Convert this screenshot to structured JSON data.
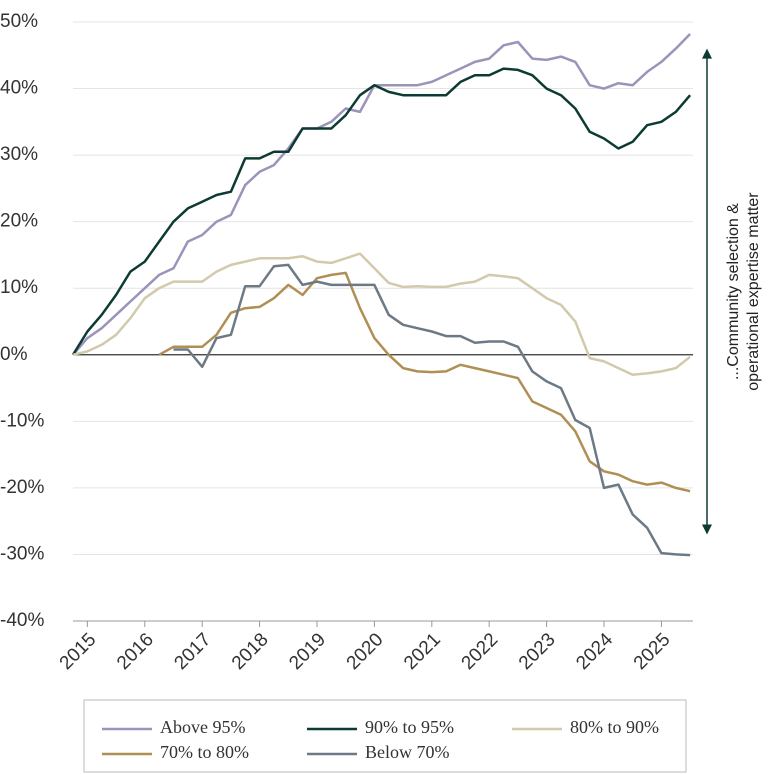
{
  "chart_data": {
    "type": "line",
    "x": [
      2014.75,
      2015,
      2015.25,
      2015.5,
      2015.75,
      2016,
      2016.25,
      2016.5,
      2016.75,
      2017,
      2017.25,
      2017.5,
      2017.75,
      2018,
      2018.25,
      2018.5,
      2018.75,
      2019,
      2019.25,
      2019.5,
      2019.75,
      2020,
      2020.25,
      2020.5,
      2020.75,
      2021,
      2021.25,
      2021.5,
      2021.75,
      2022,
      2022.25,
      2022.5,
      2022.75,
      2023,
      2023.25,
      2023.5,
      2023.75,
      2024,
      2024.25,
      2024.5,
      2024.75,
      2025,
      2025.25,
      2025.5
    ],
    "series": [
      {
        "name": "Above 95%",
        "color": "#9b94ba",
        "values": [
          0,
          2.5,
          4,
          6,
          8,
          10,
          12,
          13,
          17,
          18,
          20,
          21,
          25.5,
          27.5,
          28.5,
          31,
          34,
          34,
          35,
          37,
          36.5,
          40.5,
          40.5,
          40.5,
          40.5,
          41,
          42,
          43,
          44,
          44.5,
          46.5,
          47,
          44.5,
          44.3,
          44.8,
          44,
          40.5,
          40,
          40.8,
          40.5,
          42.5,
          44,
          46,
          48.2
        ]
      },
      {
        "name": "90% to 95%",
        "color": "#0d3b33",
        "values": [
          0,
          3.5,
          6,
          9,
          12.5,
          14,
          17,
          20,
          22,
          23,
          24,
          24.5,
          29.5,
          29.5,
          30.5,
          30.5,
          34,
          34,
          34,
          36,
          39,
          40.5,
          39.5,
          39,
          39,
          39,
          39,
          41,
          42,
          42,
          43,
          42.8,
          42,
          40,
          39,
          37,
          33.5,
          32.5,
          31,
          32,
          34.5,
          35,
          36.5,
          39
        ]
      },
      {
        "name": "80% to 90%",
        "color": "#d3c9ad",
        "values": [
          0,
          0.5,
          1.5,
          3,
          5.5,
          8.5,
          10,
          11,
          11,
          11,
          12.5,
          13.5,
          14,
          14.5,
          14.5,
          14.5,
          14.8,
          14,
          13.8,
          14.5,
          15.2,
          13,
          10.8,
          10.2,
          10.3,
          10.2,
          10.2,
          10.7,
          11,
          12,
          11.8,
          11.5,
          10,
          8.5,
          7.5,
          5,
          -0.5,
          -1,
          -2,
          -3,
          -2.8,
          -2.5,
          -2,
          -0.3
        ]
      },
      {
        "name": "70% to 80%",
        "color": "#b08f55",
        "values": [
          null,
          null,
          null,
          null,
          null,
          null,
          0,
          1.2,
          1.2,
          1.2,
          3,
          6.3,
          7,
          7.2,
          8.5,
          10.5,
          9,
          11.5,
          12,
          12.3,
          7,
          2.5,
          0,
          -2,
          -2.5,
          -2.6,
          -2.5,
          -1.5,
          -2,
          -2.5,
          -3,
          -3.5,
          -7,
          -8,
          -9,
          -11.5,
          -16,
          -17.5,
          -18,
          -19,
          -19.5,
          -19.2,
          -20,
          -20.5
        ]
      },
      {
        "name": "Below 70%",
        "color": "#6d7a86",
        "values": [
          null,
          null,
          null,
          null,
          null,
          null,
          null,
          0.8,
          0.8,
          -1.8,
          2.5,
          3,
          10.3,
          10.3,
          13.3,
          13.5,
          10.5,
          11,
          10.5,
          10.5,
          10.5,
          10.5,
          6,
          4.5,
          4,
          3.5,
          2.8,
          2.8,
          1.8,
          2,
          2,
          1.2,
          -2.5,
          -4,
          -5,
          -9.8,
          -11,
          -20,
          -19.5,
          -24,
          -26,
          -29.8,
          -30,
          -30.1
        ]
      }
    ],
    "xlim": [
      2014.75,
      2025.55
    ],
    "xticks": [
      2015,
      2016,
      2017,
      2018,
      2019,
      2020,
      2021,
      2022,
      2023,
      2024,
      2025
    ],
    "ylim": [
      -40,
      50
    ],
    "yticks": [
      {
        "value": -40,
        "label": "-40%"
      },
      {
        "value": -30,
        "label": "-30%"
      },
      {
        "value": -20,
        "label": "-20%"
      },
      {
        "value": -10,
        "label": "-10%"
      },
      {
        "value": 0,
        "label": "0%"
      },
      {
        "value": 10,
        "label": "10%"
      },
      {
        "value": 20,
        "label": "20%"
      },
      {
        "value": 30,
        "label": "30%"
      },
      {
        "value": 40,
        "label": "40%"
      },
      {
        "value": 50,
        "label": "50%"
      }
    ],
    "grid": true,
    "annotation": {
      "lines": [
        "...Community selection &",
        "operational expertise matter"
      ],
      "from": 46,
      "to": -27,
      "color": "#0d3b33"
    }
  }
}
